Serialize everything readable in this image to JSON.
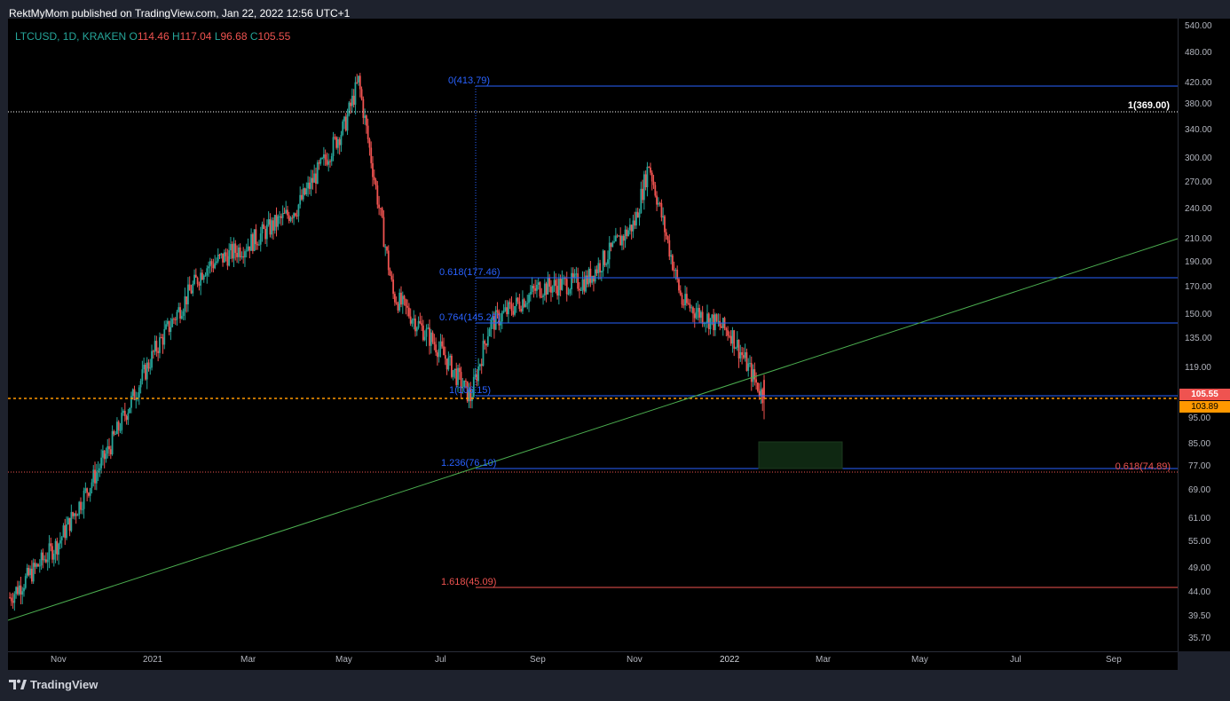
{
  "header": {
    "published_text": "RektMyMom published on TradingView.com, Jan 22, 2022 12:56 UTC+1"
  },
  "legend": {
    "symbol": "LTCUSD, 1D, KRAKEN",
    "open_label": "O",
    "open": "114.46",
    "high_label": "H",
    "high": "117.04",
    "low_label": "L",
    "low": "96.68",
    "close_label": "C",
    "close": "105.55"
  },
  "price_axis": {
    "ticks": [
      "540.00",
      "480.00",
      "420.00",
      "380.00",
      "340.00",
      "300.00",
      "270.00",
      "240.00",
      "210.00",
      "190.00",
      "170.00",
      "150.00",
      "135.00",
      "119.00",
      "95.00",
      "85.00",
      "77.00",
      "69.00",
      "61.00",
      "55.00",
      "49.00",
      "44.00",
      "39.50",
      "35.70"
    ],
    "current_price": "105.55",
    "dotted_level_price": "103.89"
  },
  "time_axis": {
    "ticks": [
      "Nov",
      "2021",
      "Mar",
      "May",
      "Jul",
      "Sep",
      "Nov",
      "2022",
      "Mar",
      "May",
      "Jul",
      "Sep"
    ]
  },
  "fib_levels": {
    "top": "0(413.79)",
    "l0618": "0.618(177.46)",
    "l0764": "0.764(145.29)",
    "l1": "1(106.15)",
    "l1236": "1.236(76.10)",
    "l1618": "1.618(45.09)",
    "ext_0618": "0.618(74.89)",
    "ath": "1(369.00)"
  },
  "colors": {
    "up": "#26a69a",
    "down": "#ef5350",
    "fib_blue": "#2962ff",
    "trendline": "#4caf50",
    "orange": "#ff9800",
    "background": "#000000",
    "panel": "#1e222d"
  },
  "footer": {
    "brand": "TradingView"
  },
  "chart_data": {
    "type": "candlestick",
    "symbol": "LTCUSD",
    "interval": "1D",
    "exchange": "KRAKEN",
    "ohlc_last": {
      "open": 114.46,
      "high": 117.04,
      "low": 96.68,
      "close": 105.55
    },
    "scale": "log",
    "ylim": [
      35.7,
      540
    ],
    "x": [
      "2020-10-01",
      "2020-11-01",
      "2020-12-01",
      "2021-01-01",
      "2021-02-01",
      "2021-03-01",
      "2021-04-01",
      "2021-05-01",
      "2021-05-10",
      "2021-06-01",
      "2021-07-01",
      "2021-07-20",
      "2021-08-01",
      "2021-09-01",
      "2021-10-01",
      "2021-11-01",
      "2021-11-10",
      "2021-12-01",
      "2022-01-01",
      "2022-01-22"
    ],
    "y": [
      45,
      57,
      83,
      130,
      185,
      205,
      240,
      340,
      413,
      165,
      130,
      106,
      145,
      170,
      175,
      225,
      290,
      160,
      140,
      105.55
    ],
    "horizontal_levels": [
      413.79,
      369.0,
      177.46,
      145.29,
      106.15,
      103.89,
      76.1,
      74.89,
      45.09
    ],
    "trendline": {
      "from": [
        "2020-10-01",
        38.5
      ],
      "to": [
        "2022-09-30",
        210
      ]
    },
    "zone": {
      "from_date": "2022-01-24",
      "to_date": "2022-03-01",
      "low": 76.1,
      "high": 86
    }
  }
}
